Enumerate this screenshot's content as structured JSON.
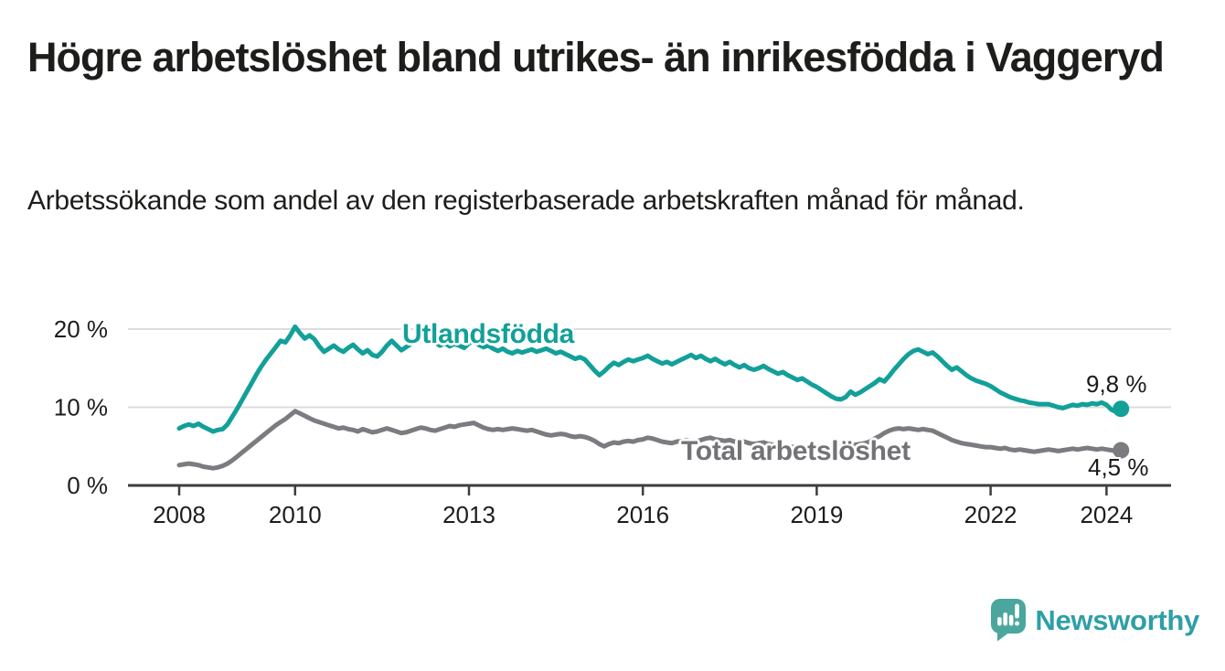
{
  "header": {
    "title": "Högre arbetslöshet bland utrikes- än inrikesfödda i Vaggeryd",
    "subtitle": "Arbetssökande som andel av den registerbaserade arbetskraften månad för månad."
  },
  "chart_data": {
    "type": "line",
    "title": "Högre arbetslöshet bland utrikes- än inrikesfödda i Vaggeryd",
    "subtitle": "Arbetssökande som andel av den registerbaserade arbetskraften månad för månad.",
    "x_unit": "month",
    "x_start_year": 2008,
    "x_end": "2024-04",
    "x_ticks": [
      2008,
      2010,
      2013,
      2016,
      2019,
      2022,
      2024
    ],
    "x_tick_labels": [
      "2008",
      "2010",
      "2013",
      "2016",
      "2019",
      "2022",
      "2024"
    ],
    "y_ticks": [
      0,
      10,
      20
    ],
    "y_tick_labels": [
      "0 %",
      "10 %",
      "20 %"
    ],
    "ylim": [
      0,
      21.5
    ],
    "grid": "horizontal",
    "legend_position": "inline-labels",
    "axis_color": "#3d3d3d",
    "grid_color": "#dcdcdc",
    "tick_label_color": "#1d1d1b",
    "series": [
      {
        "name": "Utlandsfödda",
        "color": "#12a099",
        "end_label": "9,8 %",
        "end_value": 9.8,
        "values": [
          7.3,
          7.6,
          7.8,
          7.6,
          7.9,
          7.5,
          7.2,
          6.9,
          7.1,
          7.2,
          7.8,
          8.8,
          9.8,
          10.9,
          12.0,
          13.1,
          14.2,
          15.2,
          16.1,
          16.9,
          17.7,
          18.5,
          18.3,
          19.2,
          20.3,
          19.5,
          18.8,
          19.2,
          18.7,
          17.8,
          17.1,
          17.5,
          17.9,
          17.4,
          17.1,
          17.6,
          18.0,
          17.4,
          16.9,
          17.3,
          16.7,
          16.5,
          17.1,
          17.9,
          18.5,
          17.9,
          17.3,
          17.7,
          18.1,
          18.5,
          19.0,
          19.5,
          18.9,
          18.3,
          17.9,
          18.2,
          17.8,
          18.1,
          17.9,
          17.6,
          18.2,
          18.4,
          18.0,
          17.7,
          17.9,
          17.5,
          17.2,
          17.5,
          17.1,
          16.9,
          17.2,
          17.0,
          17.2,
          17.4,
          17.1,
          17.3,
          17.5,
          17.2,
          16.9,
          17.1,
          16.8,
          16.5,
          16.2,
          16.4,
          16.1,
          15.4,
          14.7,
          14.1,
          14.6,
          15.2,
          15.7,
          15.4,
          15.8,
          16.1,
          15.9,
          16.1,
          16.3,
          16.6,
          16.2,
          15.9,
          15.6,
          15.8,
          15.5,
          15.8,
          16.1,
          16.4,
          16.7,
          16.3,
          16.6,
          16.2,
          15.9,
          16.2,
          15.8,
          15.5,
          15.8,
          15.4,
          15.1,
          15.4,
          15.0,
          14.8,
          15.0,
          15.3,
          14.9,
          14.6,
          14.3,
          14.5,
          14.1,
          13.8,
          13.5,
          13.7,
          13.3,
          12.9,
          12.6,
          12.2,
          11.8,
          11.4,
          11.1,
          11.0,
          11.3,
          12.0,
          11.6,
          11.9,
          12.3,
          12.7,
          13.1,
          13.6,
          13.3,
          14.0,
          14.8,
          15.5,
          16.2,
          16.8,
          17.2,
          17.4,
          17.1,
          16.8,
          17.0,
          16.5,
          15.9,
          15.3,
          14.8,
          15.1,
          14.6,
          14.1,
          13.7,
          13.4,
          13.2,
          13.0,
          12.7,
          12.3,
          11.9,
          11.6,
          11.3,
          11.1,
          10.9,
          10.8,
          10.6,
          10.5,
          10.4,
          10.4,
          10.4,
          10.2,
          10.0,
          9.9,
          10.1,
          10.3,
          10.2,
          10.4,
          10.3,
          10.5,
          10.4,
          10.6,
          10.3,
          9.7,
          9.4,
          9.8
        ]
      },
      {
        "name": "Total arbetslöshet",
        "color": "#7b7b80",
        "end_label": "4,5 %",
        "end_value": 4.5,
        "values": [
          2.6,
          2.7,
          2.8,
          2.7,
          2.6,
          2.4,
          2.3,
          2.2,
          2.3,
          2.5,
          2.8,
          3.2,
          3.7,
          4.2,
          4.7,
          5.2,
          5.7,
          6.2,
          6.7,
          7.2,
          7.7,
          8.1,
          8.5,
          9.0,
          9.5,
          9.2,
          8.9,
          8.6,
          8.3,
          8.1,
          7.9,
          7.7,
          7.5,
          7.3,
          7.4,
          7.2,
          7.1,
          6.9,
          7.2,
          7.0,
          6.8,
          6.9,
          7.1,
          7.3,
          7.1,
          6.9,
          6.7,
          6.8,
          7.0,
          7.2,
          7.4,
          7.3,
          7.1,
          7.0,
          7.2,
          7.4,
          7.6,
          7.5,
          7.7,
          7.8,
          7.9,
          8.0,
          7.7,
          7.4,
          7.2,
          7.1,
          7.2,
          7.1,
          7.2,
          7.3,
          7.2,
          7.1,
          7.0,
          7.1,
          6.9,
          6.7,
          6.5,
          6.4,
          6.5,
          6.6,
          6.5,
          6.3,
          6.2,
          6.3,
          6.2,
          6.0,
          5.7,
          5.3,
          5.0,
          5.3,
          5.5,
          5.4,
          5.6,
          5.7,
          5.6,
          5.8,
          5.9,
          6.1,
          6.0,
          5.8,
          5.6,
          5.5,
          5.4,
          5.6,
          5.7,
          5.8,
          5.7,
          5.6,
          5.8,
          6.0,
          6.1,
          5.9,
          5.8,
          5.7,
          5.8,
          5.6,
          5.5,
          5.6,
          5.4,
          5.3,
          5.4,
          5.5,
          5.3,
          5.2,
          5.1,
          5.2,
          5.0,
          4.9,
          5.0,
          4.9,
          4.8,
          4.9,
          5.0,
          4.9,
          4.8,
          4.9,
          4.8,
          4.9,
          5.0,
          5.1,
          5.2,
          5.3,
          5.4,
          5.6,
          6.0,
          6.3,
          6.7,
          7.0,
          7.2,
          7.3,
          7.2,
          7.3,
          7.2,
          7.1,
          7.2,
          7.1,
          7.0,
          6.7,
          6.4,
          6.1,
          5.8,
          5.6,
          5.4,
          5.3,
          5.2,
          5.1,
          5.0,
          4.9,
          4.9,
          4.8,
          4.7,
          4.8,
          4.6,
          4.5,
          4.6,
          4.5,
          4.4,
          4.3,
          4.4,
          4.5,
          4.6,
          4.5,
          4.4,
          4.5,
          4.6,
          4.7,
          4.6,
          4.7,
          4.8,
          4.7,
          4.6,
          4.7,
          4.6,
          4.5,
          4.4,
          4.5
        ]
      }
    ]
  },
  "footer": {
    "brand": "Newsworthy",
    "logo_bubble_color": "#4ba69e",
    "logo_glyph_color": "#ffffff",
    "brand_text_color": "#2f9fa6"
  }
}
